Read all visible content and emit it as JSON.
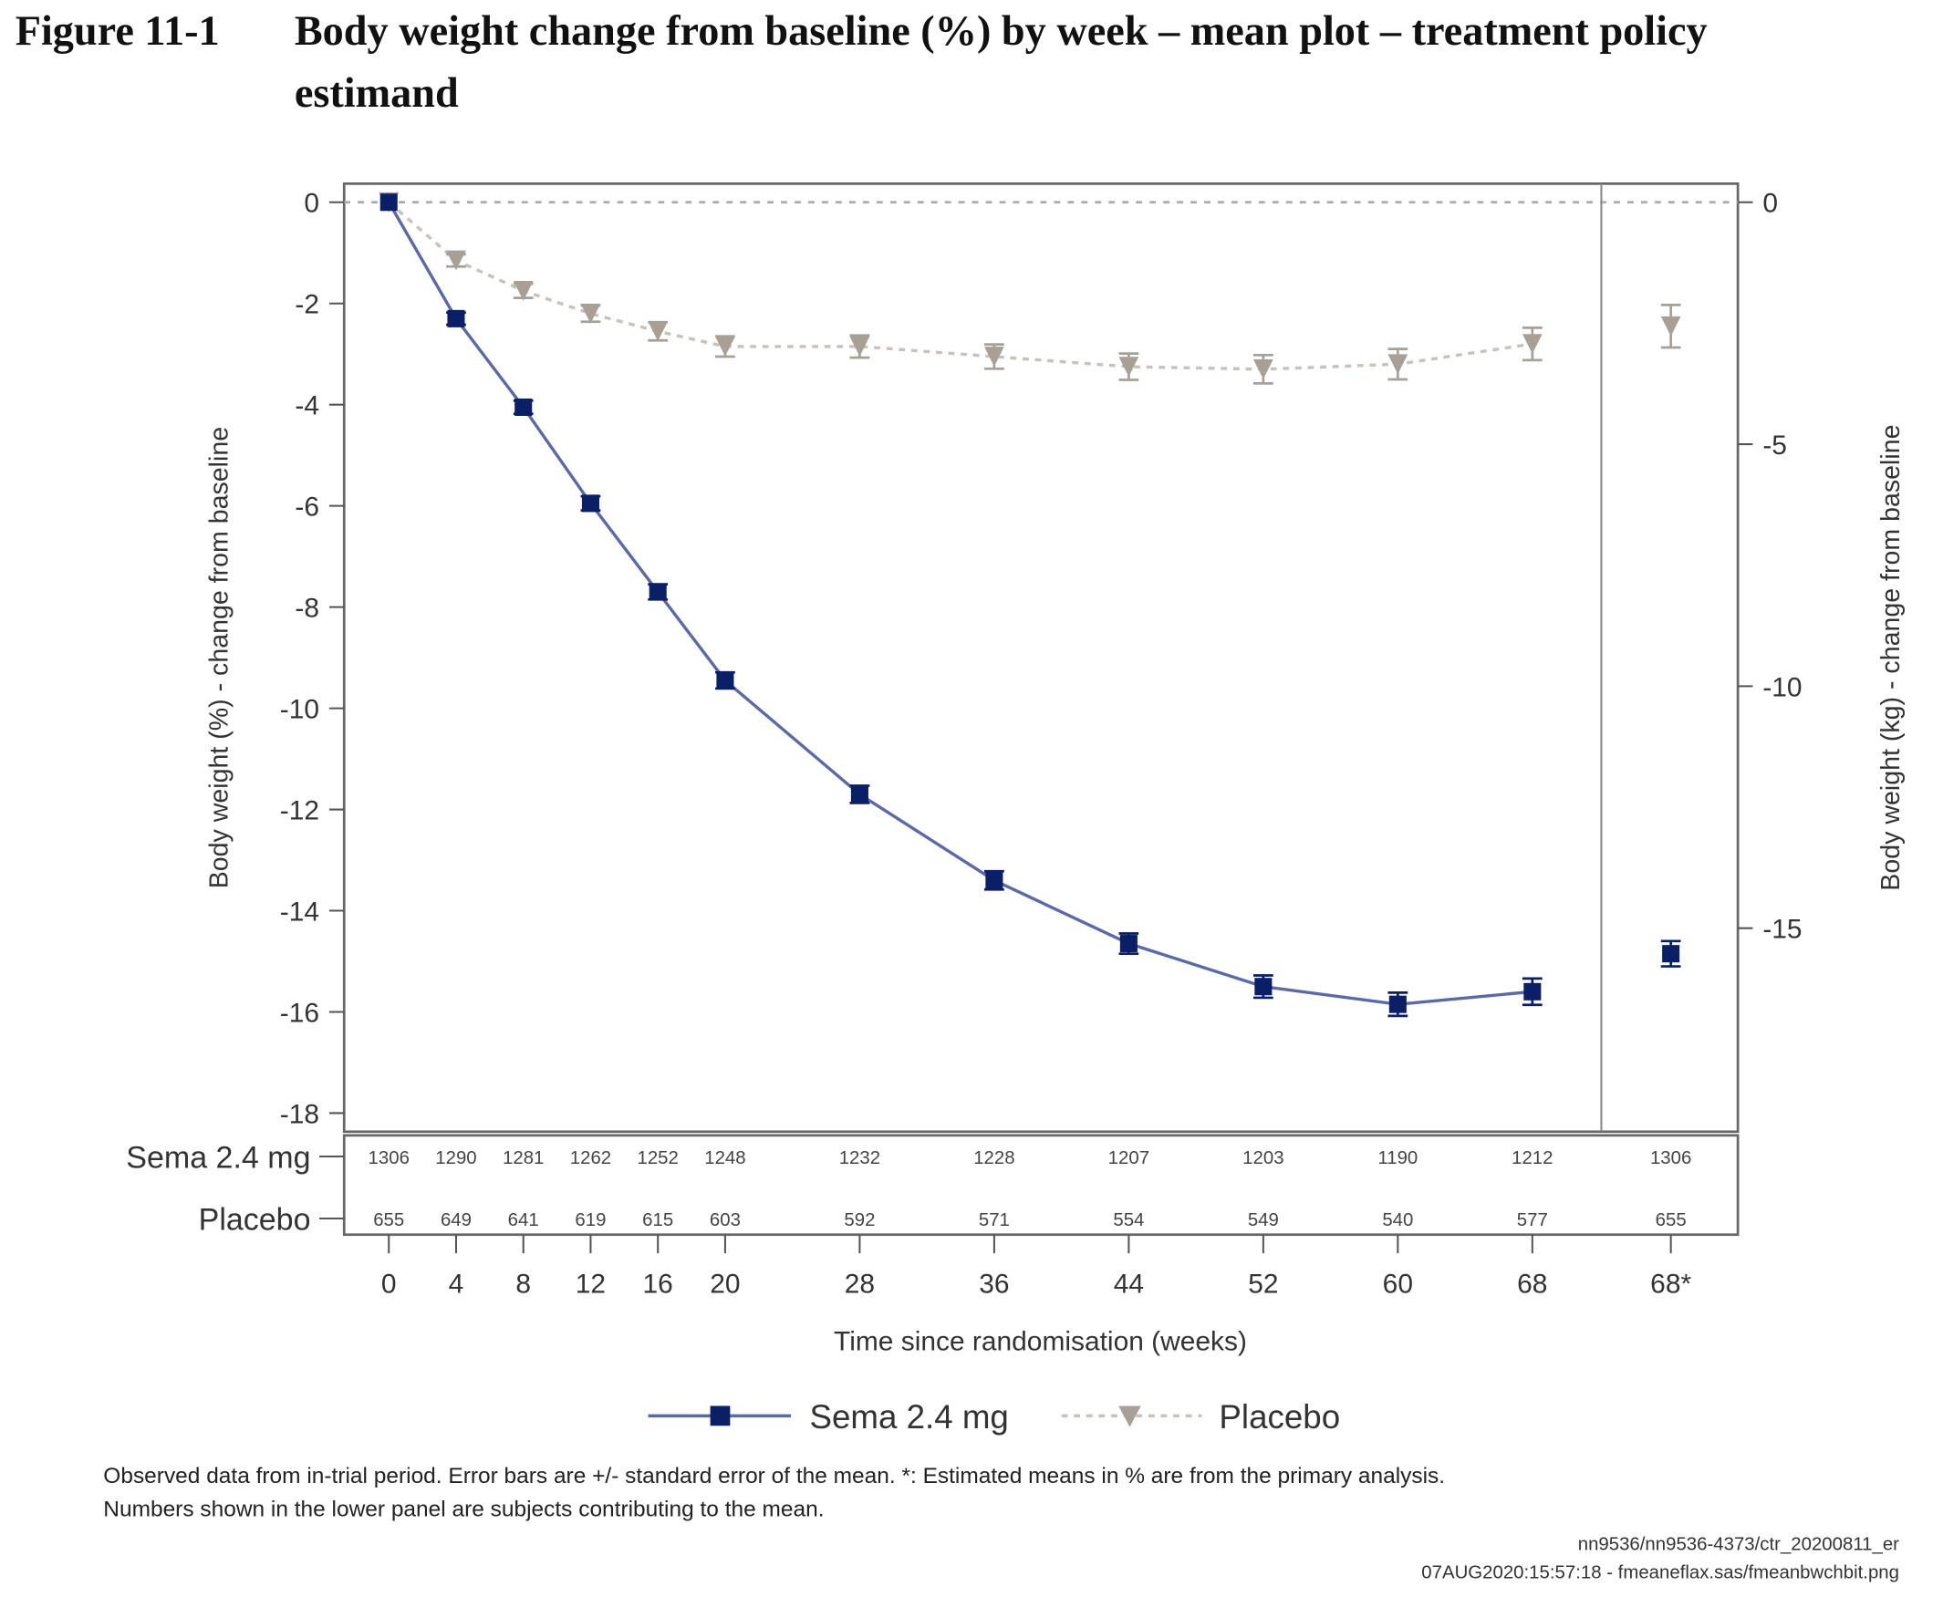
{
  "figure": {
    "number": "Figure 11-1",
    "title_line1": "Body weight change from baseline (%) by week – mean plot – treatment policy",
    "title_line2": "estimand"
  },
  "chart_data": {
    "type": "line",
    "x_categories": [
      "0",
      "4",
      "8",
      "12",
      "16",
      "20",
      "28",
      "36",
      "44",
      "52",
      "60",
      "68",
      "68*"
    ],
    "x_weeks": [
      0,
      4,
      8,
      12,
      16,
      20,
      28,
      36,
      44,
      52,
      60,
      68
    ],
    "xlabel": "Time since randomisation (weeks)",
    "ylabel": "Body weight (%) - change from baseline",
    "ylabel_right": "Body weight (kg) - change from baseline",
    "ylim": [
      -18,
      0
    ],
    "yticks": [
      "0",
      "-2",
      "-4",
      "-6",
      "-8",
      "-10",
      "-12",
      "-14",
      "-16",
      "-18"
    ],
    "ylim_right_ticks": [
      "0",
      "-5",
      "-10",
      "-15"
    ],
    "reference_line_y": 0,
    "error_bars": "+/- standard error of the mean",
    "legend_position": "bottom",
    "series": [
      {
        "name": "Sema 2.4 mg",
        "color": "#0a1f66",
        "line_color": "#5a6aa8",
        "marker": "square",
        "values": [
          0,
          -2.3,
          -4.05,
          -5.95,
          -7.7,
          -9.45,
          -11.7,
          -13.4,
          -14.65,
          -15.5,
          -15.85,
          -15.6
        ],
        "se": [
          0,
          0.12,
          0.13,
          0.14,
          0.15,
          0.16,
          0.17,
          0.18,
          0.2,
          0.22,
          0.23,
          0.26
        ],
        "estimated_68": -14.85,
        "estimated_68_se": 0.25,
        "counts": [
          "1306",
          "1290",
          "1281",
          "1262",
          "1252",
          "1248",
          "1232",
          "1228",
          "1207",
          "1203",
          "1190",
          "1212",
          "1306"
        ]
      },
      {
        "name": "Placebo",
        "color": "#a8a096",
        "line_color": "#c9c2b8",
        "marker": "triangle-down",
        "values": [
          0,
          -1.15,
          -1.75,
          -2.2,
          -2.55,
          -2.85,
          -2.85,
          -3.05,
          -3.25,
          -3.3,
          -3.2,
          -2.8
        ],
        "se": [
          0,
          0.12,
          0.14,
          0.16,
          0.18,
          0.2,
          0.22,
          0.24,
          0.26,
          0.28,
          0.3,
          0.32
        ],
        "estimated_68": -2.45,
        "estimated_68_se": 0.42,
        "counts": [
          "655",
          "649",
          "641",
          "619",
          "615",
          "603",
          "592",
          "571",
          "554",
          "549",
          "540",
          "577",
          "655"
        ]
      }
    ]
  },
  "footnotes": {
    "line1": "Observed data from in-trial period. Error bars are +/- standard error of the mean. *: Estimated means in % are from the primary analysis.",
    "line2": "Numbers shown in the lower panel are subjects contributing to the mean.",
    "source1": "nn9536/nn9536-4373/ctr_20200811_er",
    "source2": "07AUG2020:15:57:18 - fmeaneflax.sas/fmeanbwchbit.png"
  }
}
